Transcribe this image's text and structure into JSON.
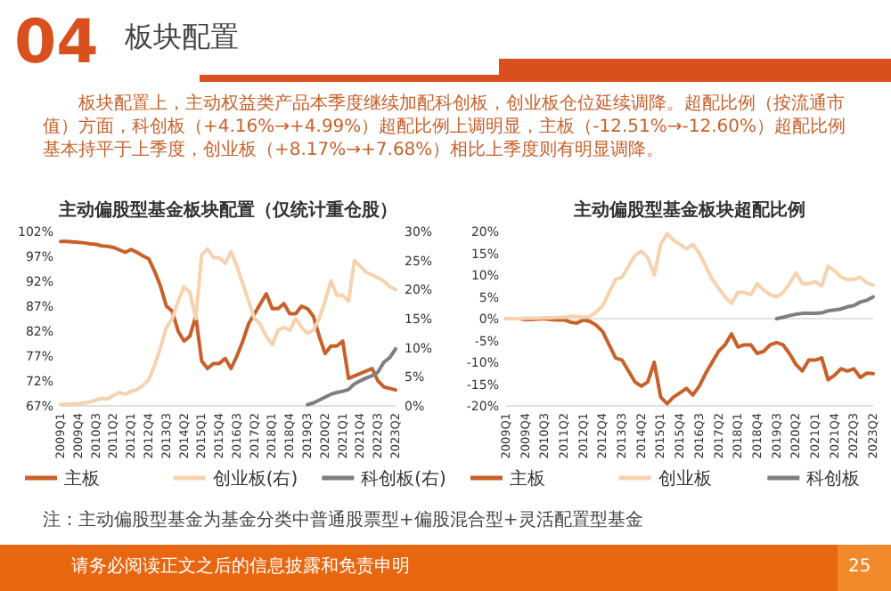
{
  "chart_data": [
    {
      "type": "line",
      "title": "主动偏股型基金板块配置（仅统计重仓股）",
      "categories": [
        "2009Q1",
        null,
        null,
        "2009Q4",
        null,
        null,
        "2010Q3",
        null,
        null,
        "2011Q2",
        null,
        null,
        "2012Q1",
        null,
        null,
        "2012Q4",
        null,
        null,
        "2013Q3",
        null,
        null,
        "2014Q2",
        null,
        null,
        "2015Q1",
        null,
        null,
        "2015Q4",
        null,
        null,
        "2016Q3",
        null,
        null,
        "2017Q2",
        null,
        null,
        "2018Q1",
        null,
        null,
        "2018Q4",
        null,
        null,
        "2019Q3",
        null,
        null,
        "2020Q2",
        null,
        null,
        "2021Q1",
        null,
        null,
        "2021Q4",
        null,
        null,
        "2022Q3",
        null,
        null,
        "2023Q2"
      ],
      "series": [
        {
          "name": "主板",
          "color": "#c8602a",
          "values": [
            100,
            100,
            99.9,
            99.8,
            99.7,
            99.5,
            99.4,
            99.1,
            99.0,
            98.8,
            98.3,
            97.8,
            98.4,
            97.8,
            97.1,
            96.5,
            94,
            91,
            87,
            86,
            82,
            80,
            81,
            85,
            76,
            74.5,
            75.5,
            75.5,
            76.5,
            74.5,
            77,
            80,
            83.5,
            85.5,
            87.5,
            89.5,
            86.5,
            86.5,
            87.5,
            85.5,
            85.5,
            87,
            86.5,
            85,
            81,
            77.5,
            79,
            79,
            80,
            72.5,
            73,
            73.5,
            74,
            74.5,
            72,
            70.8,
            70.5,
            70.2
          ]
        },
        {
          "name": "创业板(右)",
          "color": "#f6d2ae",
          "axis": "y2",
          "values": [
            0.2,
            0.3,
            0.3,
            0.4,
            0.5,
            0.7,
            1.0,
            1.3,
            1.2,
            1.8,
            2.3,
            2.0,
            2.5,
            2.8,
            3.5,
            4.5,
            7,
            10,
            13.5,
            15,
            18,
            20.5,
            19.5,
            15,
            26,
            27,
            25.5,
            25.5,
            24.5,
            26.5,
            24,
            21,
            18,
            15,
            14,
            12,
            10.5,
            13,
            13.5,
            13,
            15,
            13.5,
            12.5,
            13,
            15,
            18,
            21.5,
            19,
            19,
            18,
            25,
            24,
            23,
            22.5,
            22,
            21.5,
            20.5,
            20
          ]
        },
        {
          "name": "科创板(右)",
          "color": "#7f7f7f",
          "axis": "y2",
          "values": [
            null,
            null,
            null,
            null,
            null,
            null,
            null,
            null,
            null,
            null,
            null,
            null,
            null,
            null,
            null,
            null,
            null,
            null,
            null,
            null,
            null,
            null,
            null,
            null,
            null,
            null,
            null,
            null,
            null,
            null,
            null,
            null,
            null,
            null,
            null,
            null,
            null,
            null,
            null,
            null,
            null,
            null,
            0.2,
            0.5,
            1.0,
            1.5,
            2.0,
            2.3,
            2.5,
            2.8,
            3.8,
            4.3,
            4.8,
            5.2,
            5.8,
            7.5,
            8.3,
            9.8
          ]
        }
      ],
      "ylim": [
        67,
        102
      ],
      "yticks": [
        {
          "value": 67,
          "label": "67%"
        },
        {
          "value": 72,
          "label": "72%"
        },
        {
          "value": 77,
          "label": "77%"
        },
        {
          "value": 82,
          "label": "82%"
        },
        {
          "value": 87,
          "label": "87%"
        },
        {
          "value": 92,
          "label": "92%"
        },
        {
          "value": 97,
          "label": "97%"
        },
        {
          "value": 102,
          "label": "102%"
        }
      ],
      "y2lim": [
        0,
        30
      ],
      "y2ticks": [
        {
          "value": 0,
          "label": "0%"
        },
        {
          "value": 5,
          "label": "5%"
        },
        {
          "value": 10,
          "label": "10%"
        },
        {
          "value": 15,
          "label": "15%"
        },
        {
          "value": 20,
          "label": "20%"
        },
        {
          "value": 25,
          "label": "25%"
        },
        {
          "value": 30,
          "label": "30%"
        }
      ],
      "legend": "bottom",
      "marker": "none",
      "line_style": "solid",
      "annotations": [
        "04",
        "板块配置",
        "板块配置上，主动权益类产品本季度继续加配科创板，创业板仓位延续调降。超配比例（按流通市值）方面，科创板（+4.16%→+4.99%）超配比例上调明显，主板（-12.51%→-12.60%）超配比例基本持平于上季度，创业板（+8.17%→+7.68%）相比上季度则有明显调降。",
        "注：主动偏股型基金为基金分类中普通股票型+偏股混合型+灵活配置型基金",
        "请务必阅读正文之后的信息披露和免责申明",
        "25"
      ]
    },
    {
      "type": "line",
      "title": "主动偏股型基金板块超配比例",
      "categories": [
        "2009Q1",
        null,
        null,
        "2009Q4",
        null,
        null,
        "2010Q3",
        null,
        null,
        "2011Q2",
        null,
        null,
        "2012Q1",
        null,
        null,
        "2012Q4",
        null,
        null,
        "2013Q3",
        null,
        null,
        "2014Q2",
        null,
        null,
        "2015Q1",
        null,
        null,
        "2015Q4",
        null,
        null,
        "2016Q3",
        null,
        null,
        "2017Q2",
        null,
        null,
        "2018Q1",
        null,
        null,
        "2018Q4",
        null,
        null,
        "2019Q3",
        null,
        null,
        "2020Q2",
        null,
        null,
        "2021Q1",
        null,
        null,
        "2021Q4",
        null,
        null,
        "2022Q3",
        null,
        null,
        "2023Q2"
      ],
      "series": [
        {
          "name": "主板",
          "color": "#c8602a",
          "values": [
            0,
            0,
            0,
            -0.2,
            -0.2,
            -0.1,
            0,
            -0.2,
            -0.3,
            -0.3,
            -0.8,
            -1,
            -0.3,
            -0.6,
            -1.5,
            -3,
            -6,
            -9,
            -9.5,
            -12,
            -14.5,
            -15.5,
            -14.5,
            -10,
            -18,
            -19.5,
            -18,
            -17,
            -16,
            -17.5,
            -15.5,
            -12.5,
            -10,
            -7.5,
            -6,
            -3.5,
            -6.5,
            -6,
            -6,
            -8,
            -7.5,
            -6,
            -5.5,
            -6,
            -8,
            -10.5,
            -12,
            -9.5,
            -9.5,
            -9,
            -14,
            -13,
            -11.5,
            -12,
            -11.5,
            -13.5,
            -12.5,
            -12.6
          ]
        },
        {
          "name": "创业板",
          "color": "#f6d2ae",
          "values": [
            0,
            0,
            0,
            0.1,
            0.1,
            0.1,
            0.2,
            0.2,
            0.3,
            0.3,
            0.5,
            0.5,
            0.3,
            0.5,
            1.5,
            3,
            6,
            9,
            9.5,
            12,
            14.5,
            15.5,
            14,
            10,
            17,
            19.5,
            18,
            17,
            16,
            17,
            15,
            12,
            9,
            7,
            5,
            3.5,
            6,
            6,
            5.5,
            8,
            6.5,
            5.5,
            5,
            6,
            8,
            10.5,
            8,
            8,
            8.5,
            7.5,
            12,
            11,
            9.5,
            9,
            9,
            9.5,
            8.2,
            7.7
          ]
        },
        {
          "name": "科创板",
          "color": "#7f7f7f",
          "values": [
            null,
            null,
            null,
            null,
            null,
            null,
            null,
            null,
            null,
            null,
            null,
            null,
            null,
            null,
            null,
            null,
            null,
            null,
            null,
            null,
            null,
            null,
            null,
            null,
            null,
            null,
            null,
            null,
            null,
            null,
            null,
            null,
            null,
            null,
            null,
            null,
            null,
            null,
            null,
            null,
            null,
            null,
            0,
            0.3,
            0.7,
            1.0,
            1.2,
            1.2,
            1.2,
            1.3,
            1.8,
            2,
            2.2,
            2.7,
            3,
            3.8,
            4.2,
            5.0
          ]
        }
      ],
      "ylim": [
        -20,
        20
      ],
      "yticks": [
        {
          "value": -20,
          "label": "-20%"
        },
        {
          "value": -15,
          "label": "-15%"
        },
        {
          "value": -10,
          "label": "-10%"
        },
        {
          "value": -5,
          "label": "-5%"
        },
        {
          "value": 0,
          "label": "0%"
        },
        {
          "value": 5,
          "label": "5%"
        },
        {
          "value": 10,
          "label": "10%"
        },
        {
          "value": 15,
          "label": "15%"
        },
        {
          "value": 20,
          "label": "20%"
        }
      ],
      "ref_lines": [
        {
          "axis": "y",
          "value": 0,
          "color": "#d9d9d9"
        }
      ],
      "legend": "bottom",
      "marker": "none",
      "line_style": "solid"
    }
  ]
}
